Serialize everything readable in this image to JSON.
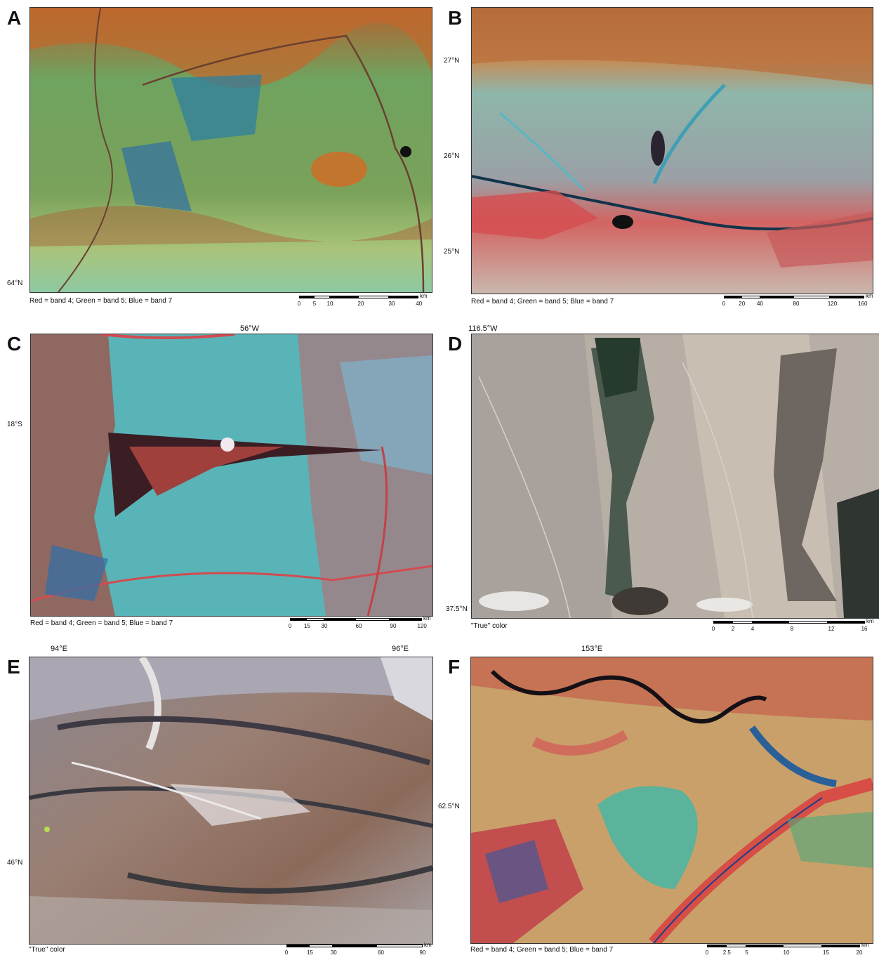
{
  "colors": {
    "false_color_green": "#5aa872",
    "false_color_orange": "#c26a35",
    "false_color_cyan": "#4fb9bf",
    "false_color_red": "#d9504c",
    "true_color_gray": "#b4aca2",
    "true_color_brown": "#8a6a58"
  },
  "panels": [
    {
      "letter": "A",
      "caption": "Red = band 4; Green = band 5; Blue = band 7",
      "lat": "64°N",
      "lon_top": [],
      "scale_ticks": [
        "0",
        "5",
        "10",
        "20",
        "30",
        "40"
      ],
      "scale_unit": "km"
    },
    {
      "letter": "B",
      "caption": "Red = band 4; Green = band 5; Blue = band 7",
      "lat": [
        "27°N",
        "26°N",
        "25°N"
      ],
      "lon_top": [],
      "scale_ticks": [
        "0",
        "20",
        "40",
        "80",
        "120",
        "160"
      ],
      "scale_unit": "km"
    },
    {
      "letter": "C",
      "caption": "Red = band 4; Green = band 5; Blue = band 7",
      "lat": "18°S",
      "lon_top": "56°W",
      "scale_ticks": [
        "0",
        "15",
        "30",
        "60",
        "90",
        "120"
      ],
      "scale_unit": "km"
    },
    {
      "letter": "D",
      "caption": "\"True\" color",
      "lat": "37.5°N",
      "lon_top": "116.5°W",
      "scale_ticks": [
        "0",
        "2",
        "4",
        "8",
        "12",
        "16"
      ],
      "scale_unit": "km"
    },
    {
      "letter": "E",
      "caption": "\"True\" color",
      "lat": "46°N",
      "lon_top": [
        "94°E",
        "96°E"
      ],
      "scale_ticks": [
        "0",
        "15",
        "30",
        "60",
        "90"
      ],
      "scale_unit": "km"
    },
    {
      "letter": "F",
      "caption": "Red = band 4; Green = band 5; Blue = band 7",
      "lat": "62.5°N",
      "lon_top": "153°E",
      "scale_ticks": [
        "0",
        "2.5",
        "5",
        "10",
        "15",
        "20"
      ],
      "scale_unit": "km"
    }
  ]
}
